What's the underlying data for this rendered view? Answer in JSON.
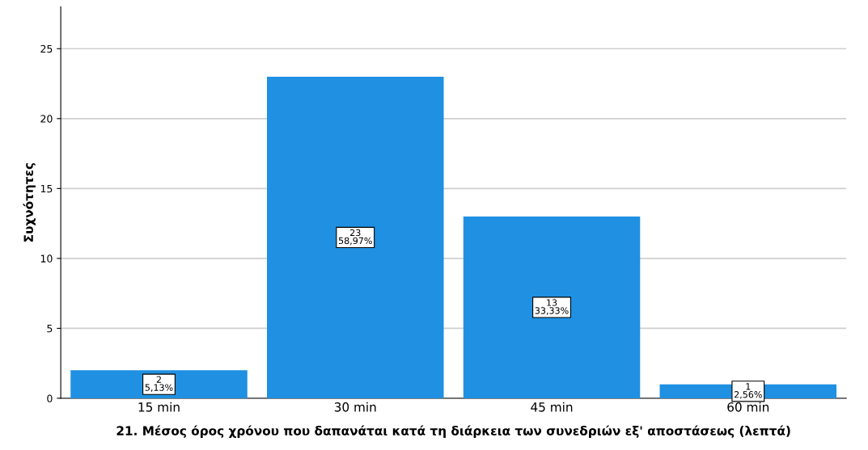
{
  "chart_data": {
    "type": "bar",
    "xlabel": "21. Μέσος όρος χρόνου που δαπανάται κατά τη διάρκεια των συνεδριών εξ' αποστάσεως (λεπτά)",
    "ylabel": "Συχνότητες",
    "categories": [
      "15 min",
      "30 min",
      "45 min",
      "60 min"
    ],
    "values": [
      2,
      23,
      13,
      1
    ],
    "color": "#1f90e2",
    "value_labels": [
      "2\n5,13%",
      "23\n58,97%",
      "13\n33,33%",
      "1\n2,56%"
    ],
    "ylim": [
      0,
      28
    ],
    "yticks": [
      0,
      5,
      10,
      15,
      20,
      25
    ],
    "grid": "y",
    "legend": false
  }
}
